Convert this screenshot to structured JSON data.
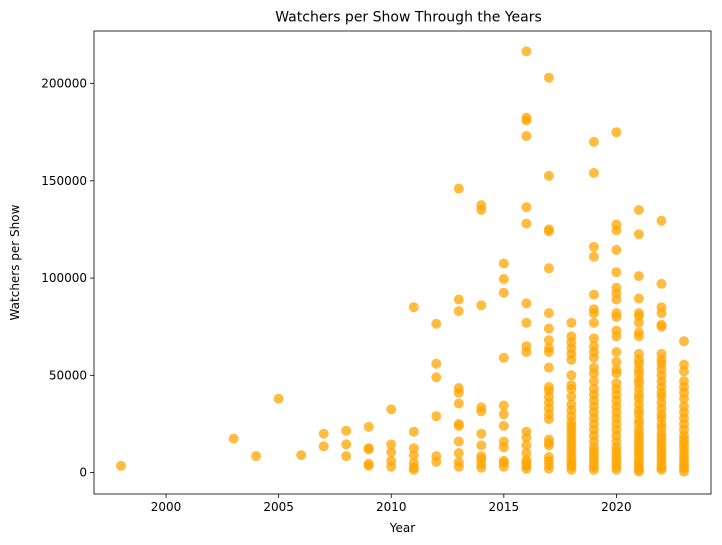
{
  "chart_data": {
    "type": "scatter",
    "title": "Watchers per Show Through the Years",
    "xlabel": "Year",
    "ylabel": "Watchers per Show",
    "xlim": [
      1996.8,
      2024.2
    ],
    "ylim": [
      -11000,
      227000
    ],
    "xticks": [
      2000,
      2005,
      2010,
      2015,
      2020
    ],
    "yticks": [
      0,
      50000,
      100000,
      150000,
      200000
    ],
    "grid": false,
    "marker_color": "#FFA500",
    "marker_alpha": 0.75,
    "series": [
      {
        "points": [
          [
            1998,
            3500
          ],
          [
            2003,
            17500
          ],
          [
            2004,
            8500
          ],
          [
            2005,
            38000
          ],
          [
            2006,
            9000
          ],
          [
            2007,
            20000
          ],
          [
            2007,
            13500
          ],
          [
            2008,
            21500
          ],
          [
            2008,
            14500
          ],
          [
            2008,
            8500
          ],
          [
            2009,
            23500
          ],
          [
            2009,
            12500
          ],
          [
            2009,
            12000
          ],
          [
            2009,
            4500
          ],
          [
            2009,
            3500
          ],
          [
            2010,
            32500
          ],
          [
            2010,
            14500
          ],
          [
            2010,
            10500
          ],
          [
            2010,
            6000
          ],
          [
            2010,
            3000
          ],
          [
            2011,
            85000
          ],
          [
            2011,
            21000
          ],
          [
            2011,
            12500
          ],
          [
            2011,
            9000
          ],
          [
            2011,
            5000
          ],
          [
            2011,
            2500
          ],
          [
            2011,
            1500
          ],
          [
            2012,
            76500
          ],
          [
            2012,
            56000
          ],
          [
            2012,
            49000
          ],
          [
            2012,
            29000
          ],
          [
            2012,
            8500
          ],
          [
            2012,
            5500
          ],
          [
            2013,
            146000
          ],
          [
            2013,
            89000
          ],
          [
            2013,
            83000
          ],
          [
            2013,
            43500
          ],
          [
            2013,
            41000
          ],
          [
            2013,
            35500
          ],
          [
            2013,
            25000
          ],
          [
            2013,
            24000
          ],
          [
            2013,
            16000
          ],
          [
            2013,
            10000
          ],
          [
            2013,
            5500
          ],
          [
            2013,
            3000
          ],
          [
            2014,
            137500
          ],
          [
            2014,
            135000
          ],
          [
            2014,
            86000
          ],
          [
            2014,
            33500
          ],
          [
            2014,
            31500
          ],
          [
            2014,
            20000
          ],
          [
            2014,
            14000
          ],
          [
            2014,
            8500
          ],
          [
            2014,
            7000
          ],
          [
            2014,
            4500
          ],
          [
            2014,
            2500
          ],
          [
            2015,
            107500
          ],
          [
            2015,
            99500
          ],
          [
            2015,
            92500
          ],
          [
            2015,
            59000
          ],
          [
            2015,
            34500
          ],
          [
            2015,
            30000
          ],
          [
            2015,
            24000
          ],
          [
            2015,
            16000
          ],
          [
            2015,
            13000
          ],
          [
            2015,
            6000
          ],
          [
            2015,
            5000
          ],
          [
            2015,
            3000
          ],
          [
            2016,
            216500
          ],
          [
            2016,
            182500
          ],
          [
            2016,
            181000
          ],
          [
            2016,
            173000
          ],
          [
            2016,
            136500
          ],
          [
            2016,
            128000
          ],
          [
            2016,
            87000
          ],
          [
            2016,
            77000
          ],
          [
            2016,
            65000
          ],
          [
            2016,
            62000
          ],
          [
            2016,
            21000
          ],
          [
            2016,
            18000
          ],
          [
            2016,
            14000
          ],
          [
            2016,
            10000
          ],
          [
            2016,
            6500
          ],
          [
            2016,
            5000
          ],
          [
            2016,
            3500
          ],
          [
            2016,
            2000
          ],
          [
            2017,
            203000
          ],
          [
            2017,
            152500
          ],
          [
            2017,
            125000
          ],
          [
            2017,
            124000
          ],
          [
            2017,
            105000
          ],
          [
            2017,
            82000
          ],
          [
            2017,
            74000
          ],
          [
            2017,
            68000
          ],
          [
            2017,
            64000
          ],
          [
            2017,
            62000
          ],
          [
            2017,
            54000
          ],
          [
            2017,
            44000
          ],
          [
            2017,
            42000
          ],
          [
            2017,
            39000
          ],
          [
            2017,
            36000
          ],
          [
            2017,
            33000
          ],
          [
            2017,
            30000
          ],
          [
            2017,
            27500
          ],
          [
            2017,
            17000
          ],
          [
            2017,
            15000
          ],
          [
            2017,
            14000
          ],
          [
            2017,
            8000
          ],
          [
            2017,
            6000
          ],
          [
            2017,
            4000
          ],
          [
            2017,
            2000
          ],
          [
            2018,
            77000
          ],
          [
            2018,
            70000
          ],
          [
            2018,
            67000
          ],
          [
            2018,
            64000
          ],
          [
            2018,
            61000
          ],
          [
            2018,
            58000
          ],
          [
            2018,
            50000
          ],
          [
            2018,
            45000
          ],
          [
            2018,
            43000
          ],
          [
            2018,
            39000
          ],
          [
            2018,
            35000
          ],
          [
            2018,
            32000
          ],
          [
            2018,
            29000
          ],
          [
            2018,
            26000
          ],
          [
            2018,
            24000
          ],
          [
            2018,
            22000
          ],
          [
            2018,
            20000
          ],
          [
            2018,
            18000
          ],
          [
            2018,
            16000
          ],
          [
            2018,
            14000
          ],
          [
            2018,
            12000
          ],
          [
            2018,
            10000
          ],
          [
            2018,
            8000
          ],
          [
            2018,
            6000
          ],
          [
            2018,
            4500
          ],
          [
            2018,
            3000
          ],
          [
            2018,
            1500
          ],
          [
            2019,
            170000
          ],
          [
            2019,
            154000
          ],
          [
            2019,
            116000
          ],
          [
            2019,
            111000
          ],
          [
            2019,
            91500
          ],
          [
            2019,
            84000
          ],
          [
            2019,
            82000
          ],
          [
            2019,
            77000
          ],
          [
            2019,
            69000
          ],
          [
            2019,
            65000
          ],
          [
            2019,
            62000
          ],
          [
            2019,
            59000
          ],
          [
            2019,
            54000
          ],
          [
            2019,
            51000
          ],
          [
            2019,
            47000
          ],
          [
            2019,
            43000
          ],
          [
            2019,
            40000
          ],
          [
            2019,
            37000
          ],
          [
            2019,
            34000
          ],
          [
            2019,
            31000
          ],
          [
            2019,
            28000
          ],
          [
            2019,
            25000
          ],
          [
            2019,
            22000
          ],
          [
            2019,
            19000
          ],
          [
            2019,
            16000
          ],
          [
            2019,
            13000
          ],
          [
            2019,
            11000
          ],
          [
            2019,
            9000
          ],
          [
            2019,
            7000
          ],
          [
            2019,
            5000
          ],
          [
            2019,
            3000
          ],
          [
            2019,
            1500
          ],
          [
            2020,
            175000
          ],
          [
            2020,
            127500
          ],
          [
            2020,
            124500
          ],
          [
            2020,
            114500
          ],
          [
            2020,
            103000
          ],
          [
            2020,
            95000
          ],
          [
            2020,
            92000
          ],
          [
            2020,
            89000
          ],
          [
            2020,
            82000
          ],
          [
            2020,
            80000
          ],
          [
            2020,
            73000
          ],
          [
            2020,
            70000
          ],
          [
            2020,
            62000
          ],
          [
            2020,
            57000
          ],
          [
            2020,
            53000
          ],
          [
            2020,
            51000
          ],
          [
            2020,
            46000
          ],
          [
            2020,
            43000
          ],
          [
            2020,
            40000
          ],
          [
            2020,
            37000
          ],
          [
            2020,
            34000
          ],
          [
            2020,
            31000
          ],
          [
            2020,
            28000
          ],
          [
            2020,
            25000
          ],
          [
            2020,
            22000
          ],
          [
            2020,
            19000
          ],
          [
            2020,
            16000
          ],
          [
            2020,
            13000
          ],
          [
            2020,
            11000
          ],
          [
            2020,
            9000
          ],
          [
            2020,
            7000
          ],
          [
            2020,
            5000
          ],
          [
            2020,
            3000
          ],
          [
            2020,
            1500
          ],
          [
            2021,
            135000
          ],
          [
            2021,
            122500
          ],
          [
            2021,
            101000
          ],
          [
            2021,
            89500
          ],
          [
            2021,
            82000
          ],
          [
            2021,
            80500
          ],
          [
            2021,
            77000
          ],
          [
            2021,
            72000
          ],
          [
            2021,
            70000
          ],
          [
            2021,
            61000
          ],
          [
            2021,
            58000
          ],
          [
            2021,
            56000
          ],
          [
            2021,
            53000
          ],
          [
            2021,
            51000
          ],
          [
            2021,
            48000
          ],
          [
            2021,
            46000
          ],
          [
            2021,
            43000
          ],
          [
            2021,
            40000
          ],
          [
            2021,
            38000
          ],
          [
            2021,
            35000
          ],
          [
            2021,
            32000
          ],
          [
            2021,
            30000
          ],
          [
            2021,
            27000
          ],
          [
            2021,
            25000
          ],
          [
            2021,
            22000
          ],
          [
            2021,
            20000
          ],
          [
            2021,
            18000
          ],
          [
            2021,
            16000
          ],
          [
            2021,
            14000
          ],
          [
            2021,
            12000
          ],
          [
            2021,
            10000
          ],
          [
            2021,
            8000
          ],
          [
            2021,
            6000
          ],
          [
            2021,
            4500
          ],
          [
            2021,
            3000
          ],
          [
            2021,
            1500
          ],
          [
            2021,
            500
          ],
          [
            2022,
            129500
          ],
          [
            2022,
            97000
          ],
          [
            2022,
            85000
          ],
          [
            2022,
            82000
          ],
          [
            2022,
            76000
          ],
          [
            2022,
            75000
          ],
          [
            2022,
            61000
          ],
          [
            2022,
            58000
          ],
          [
            2022,
            56000
          ],
          [
            2022,
            53000
          ],
          [
            2022,
            50000
          ],
          [
            2022,
            47000
          ],
          [
            2022,
            44000
          ],
          [
            2022,
            41000
          ],
          [
            2022,
            39000
          ],
          [
            2022,
            36000
          ],
          [
            2022,
            33000
          ],
          [
            2022,
            30000
          ],
          [
            2022,
            28000
          ],
          [
            2022,
            25000
          ],
          [
            2022,
            23000
          ],
          [
            2022,
            20000
          ],
          [
            2022,
            18000
          ],
          [
            2022,
            16000
          ],
          [
            2022,
            14000
          ],
          [
            2022,
            12000
          ],
          [
            2022,
            10000
          ],
          [
            2022,
            8000
          ],
          [
            2022,
            6000
          ],
          [
            2022,
            4000
          ],
          [
            2022,
            2500
          ],
          [
            2022,
            1500
          ],
          [
            2023,
            67500
          ],
          [
            2023,
            55500
          ],
          [
            2023,
            52000
          ],
          [
            2023,
            47000
          ],
          [
            2023,
            44000
          ],
          [
            2023,
            41000
          ],
          [
            2023,
            38000
          ],
          [
            2023,
            34000
          ],
          [
            2023,
            31000
          ],
          [
            2023,
            28000
          ],
          [
            2023,
            25000
          ],
          [
            2023,
            22000
          ],
          [
            2023,
            19000
          ],
          [
            2023,
            17000
          ],
          [
            2023,
            15000
          ],
          [
            2023,
            13000
          ],
          [
            2023,
            11000
          ],
          [
            2023,
            9000
          ],
          [
            2023,
            7000
          ],
          [
            2023,
            5000
          ],
          [
            2023,
            3500
          ],
          [
            2023,
            2000
          ],
          [
            2023,
            500
          ]
        ]
      }
    ]
  }
}
